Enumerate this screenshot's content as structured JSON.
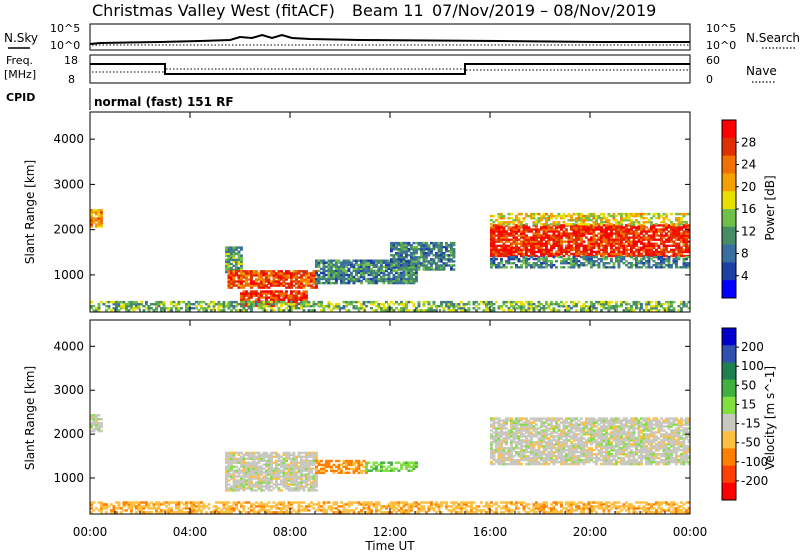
{
  "header": {
    "title": "Christmas Valley West (fitACF)",
    "beam": "Beam 11",
    "date_range": "07/Nov/2019 – 08/Nov/2019",
    "mode": "normal (fast) 151 RF"
  },
  "panels": {
    "nsky_label": "N.Sky",
    "nsearch_label": "N.Search",
    "nsky_ticks": [
      "10^5",
      "10^0"
    ],
    "nsearch_ticks": [
      "10^5",
      "10^0"
    ],
    "freq_label_1": "Freq.",
    "freq_label_2": "[MHz]",
    "freq_ticks": [
      "18",
      "8"
    ],
    "nave_label": "Nave",
    "nave_ticks": [
      "60",
      "0"
    ],
    "cpid_label": "CPID"
  },
  "colors": {
    "power": [
      "#0000ff",
      "#1e3fa6",
      "#3b6ea0",
      "#468c64",
      "#6fbf4a",
      "#e8e000",
      "#f5a000",
      "#f07000",
      "#e03000",
      "#ff0000"
    ],
    "velocity": [
      "#ff0000",
      "#ff4000",
      "#ff8000",
      "#ffbf40",
      "#c8c8c0",
      "#80e040",
      "#40b040",
      "#1f7f50",
      "#3050b0",
      "#0000cc"
    ]
  },
  "chart_data": [
    {
      "type": "heatmap",
      "name": "power",
      "ylabel": "Slant Range [km]",
      "x_range": [
        "00:00",
        "24:00"
      ],
      "ylim": [
        180,
        4600
      ],
      "yticks": [
        1000,
        2000,
        3000,
        4000
      ],
      "colorbar": {
        "label": "Power [dB]",
        "ticks": [
          4,
          8,
          12,
          16,
          20,
          24,
          28
        ],
        "range": [
          0,
          32
        ]
      },
      "regions": [
        {
          "t0": 0.0,
          "t1": 0.5,
          "r0": 2050,
          "r1": 2450,
          "value": 22
        },
        {
          "t0": 5.4,
          "t1": 6.0,
          "r0": 1000,
          "r1": 1600,
          "value": 12
        },
        {
          "t0": 5.5,
          "t1": 9.0,
          "r0": 700,
          "r1": 1100,
          "value": 26
        },
        {
          "t0": 6.0,
          "t1": 8.6,
          "r0": 300,
          "r1": 650,
          "value": 28
        },
        {
          "t0": 9.0,
          "t1": 13.0,
          "r0": 800,
          "r1": 1300,
          "value": 10
        },
        {
          "t0": 12.0,
          "t1": 14.5,
          "r0": 1100,
          "r1": 1700,
          "value": 9
        },
        {
          "t0": 16.0,
          "t1": 24.0,
          "r0": 1400,
          "r1": 2100,
          "value": 28
        },
        {
          "t0": 16.0,
          "t1": 24.0,
          "r0": 2100,
          "r1": 2350,
          "value": 18
        },
        {
          "t0": 16.0,
          "t1": 24.0,
          "r0": 1150,
          "r1": 1400,
          "value": 10
        },
        {
          "t0": 0.0,
          "t1": 24.0,
          "r0": 200,
          "r1": 400,
          "value": 14
        }
      ]
    },
    {
      "type": "heatmap",
      "name": "velocity",
      "ylabel": "Slant Range [km]",
      "xlabel": "Time UT",
      "x_range": [
        "00:00",
        "24:00"
      ],
      "xticks": [
        "00:00",
        "04:00",
        "08:00",
        "12:00",
        "16:00",
        "20:00",
        "00:00"
      ],
      "ylim": [
        180,
        4600
      ],
      "yticks": [
        1000,
        2000,
        3000,
        4000
      ],
      "colorbar": {
        "label": "Velocity [m s^-1]",
        "ticks": [
          -200,
          -100,
          -50,
          -15,
          15,
          50,
          100,
          200
        ]
      },
      "regions": [
        {
          "t0": 0.0,
          "t1": 0.5,
          "r0": 2050,
          "r1": 2450,
          "value": 0
        },
        {
          "t0": 5.4,
          "t1": 9.0,
          "r0": 700,
          "r1": 1600,
          "value": 0
        },
        {
          "t0": 9.0,
          "t1": 11.0,
          "r0": 1100,
          "r1": 1400,
          "value": -60
        },
        {
          "t0": 11.0,
          "t1": 13.0,
          "r0": 1150,
          "r1": 1350,
          "value": 40
        },
        {
          "t0": 16.0,
          "t1": 24.0,
          "r0": 1300,
          "r1": 2350,
          "value": 0
        },
        {
          "t0": 0.0,
          "t1": 24.0,
          "r0": 200,
          "r1": 450,
          "value": -40
        }
      ]
    }
  ]
}
